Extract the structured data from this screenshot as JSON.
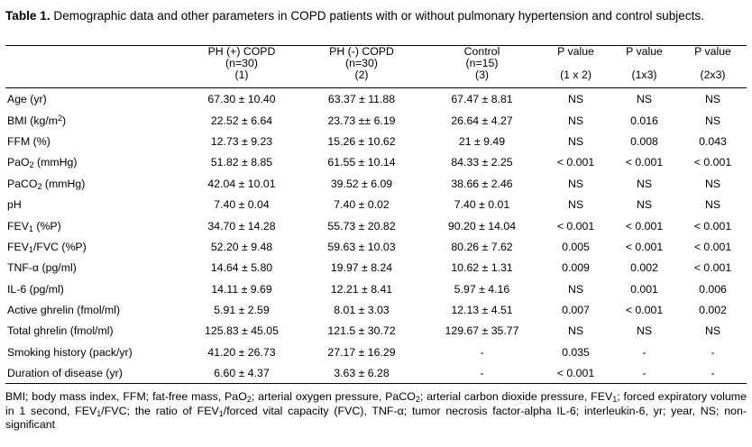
{
  "title": {
    "label": "Table 1.",
    "text": " Demographic data and other parameters in COPD patients with or without pulmonary hypertension and control subjects."
  },
  "headers": [
    {
      "name": "",
      "n": "",
      "idx": ""
    },
    {
      "name": "PH (+) COPD",
      "n": "(n=30)",
      "idx": "(1)"
    },
    {
      "name": "PH (-) COPD",
      "n": "(n=30)",
      "idx": "(2)"
    },
    {
      "name": "Control",
      "n": "(n=15)",
      "idx": "(3)"
    },
    {
      "name": "P value",
      "n": "",
      "idx": "(1 x 2)"
    },
    {
      "name": "P value",
      "n": "",
      "idx": "(1x3)"
    },
    {
      "name": "P value",
      "n": "",
      "idx": "(2x3)"
    }
  ],
  "rows": [
    {
      "label": "Age (yr)",
      "cells": [
        "67.30 ± 10.40",
        "63.37 ± 11.88",
        "67.47 ± 8.81",
        "NS",
        "NS",
        "NS"
      ]
    },
    {
      "label": "BMI (kg/m",
      "label_sup": "2",
      "label_after": ")",
      "cells": [
        "22.52 ± 6.64",
        "23.73 ±± 6.19",
        "26.64 ± 4.27",
        "NS",
        "0.016",
        "NS"
      ]
    },
    {
      "label": "FFM (%)",
      "cells": [
        "12.73 ± 9.23",
        "15.26 ± 10.62",
        "21 ± 9.49",
        "NS",
        "0.008",
        "0.043"
      ]
    },
    {
      "label": "PaO",
      "label_sub": "2",
      "label_after": " (mmHg)",
      "cells": [
        "51.82 ± 8.85",
        "61.55 ± 10.14",
        "84.33 ± 2.25",
        "< 0.001",
        "< 0.001",
        "< 0.001"
      ]
    },
    {
      "label": "PaCO",
      "label_sub": "2",
      "label_after": " (mmHg)",
      "cells": [
        "42.04 ± 10.01",
        "39.52 ± 6.09",
        "38.66 ± 2.46",
        "NS",
        "NS",
        "NS"
      ]
    },
    {
      "label": "pH",
      "cells": [
        "7.40 ± 0.04",
        "7.40 ± 0.02",
        "7.40 ± 0.01",
        "NS",
        "NS",
        "NS"
      ]
    },
    {
      "label": "FEV",
      "label_sub": "1",
      "label_after": " (%P)",
      "cells": [
        "34.70 ± 14.28",
        "55.73 ± 20.82",
        "90.20 ± 14.04",
        "< 0.001",
        "< 0.001",
        "< 0.001"
      ]
    },
    {
      "label": "FEV",
      "label_sub": "1",
      "label_after": "/FVC (%P)",
      "cells": [
        "52.20 ± 9.48",
        "59.63 ± 10.03",
        "80.26 ± 7.62",
        "0.005",
        "< 0.001",
        "< 0.001"
      ]
    },
    {
      "label": "TNF-α (pg/ml)",
      "cells": [
        "14.64 ± 5.80",
        "19.97 ± 8.24",
        "10.62 ± 1.31",
        "0.009",
        "0.002",
        "< 0.001"
      ]
    },
    {
      "label": "IL-6 (pg/ml)",
      "cells": [
        "14.11 ± 9.69",
        "12.21 ± 8.41",
        "5.97 ± 4.16",
        "NS",
        "0.001",
        "0.006"
      ]
    },
    {
      "label": "Active ghrelin (fmol/ml)",
      "cells": [
        "5.91 ± 2.59",
        "8.01 ± 3.03",
        "12.13 ± 4.51",
        "0.007",
        "< 0.001",
        "0.002"
      ]
    },
    {
      "label": "Total ghrelin (fmol/ml)",
      "cells": [
        "125.83 ± 45.05",
        "121.5 ± 30.72",
        "129.67 ± 35.77",
        "NS",
        "NS",
        "NS"
      ]
    },
    {
      "label": "Smoking history (pack/yr)",
      "cells": [
        "41.20 ± 26.73",
        "27.17 ± 16.29",
        "-",
        "0.035",
        "-",
        "-"
      ]
    },
    {
      "label": "Duration of disease (yr)",
      "cells": [
        "6.60 ± 4.37",
        "3.63 ± 6.28",
        "-",
        "< 0.001",
        "-",
        "-"
      ]
    }
  ],
  "footnote": [
    {
      "t": "BMI; body mass index, FFM; fat-free mass, PaO"
    },
    {
      "sub": "2"
    },
    {
      "t": "; arterial oxygen pressure, PaCO"
    },
    {
      "sub": "2"
    },
    {
      "t": "; arterial carbon dioxide pressure, FEV"
    },
    {
      "sub": "1"
    },
    {
      "t": "; forced expiratory volume in 1 second, FEV"
    },
    {
      "sub": "1"
    },
    {
      "t": "/FVC; the ratio of  FEV"
    },
    {
      "sub": "1"
    },
    {
      "t": "/forced vital capacity (FVC), TNF-α; tumor necrosis factor-alpha IL-6; interleukin-6, yr; year, NS; non-significant"
    }
  ]
}
